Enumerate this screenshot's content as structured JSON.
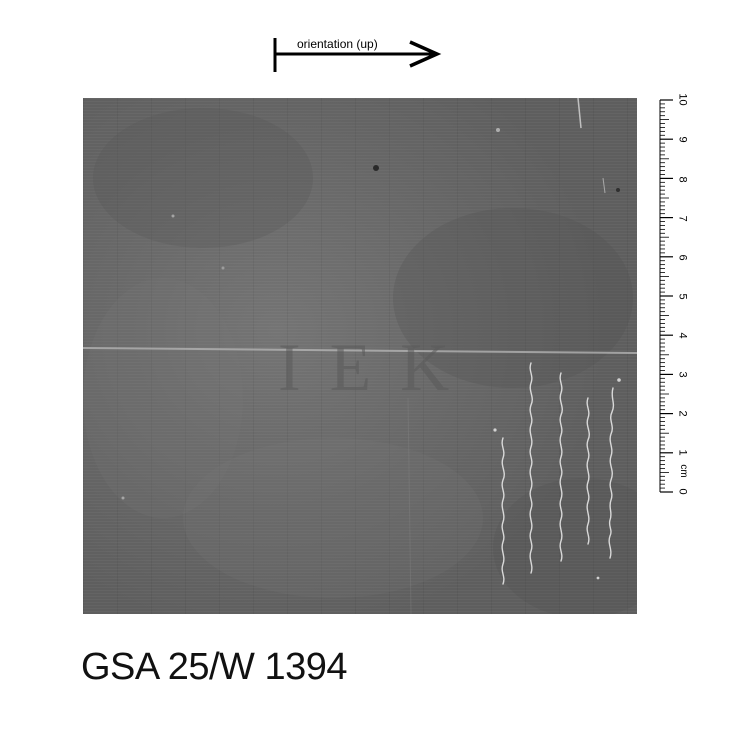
{
  "orientation": {
    "label": "orientation (up)"
  },
  "ruler": {
    "unit": "cm",
    "numbers": [
      "0",
      "1",
      "2",
      "3",
      "4",
      "5",
      "6",
      "7",
      "8",
      "9",
      "10"
    ]
  },
  "shelfmark": "GSA 25/W 1394",
  "colors": {
    "paper": "#6b6b6b",
    "ink": "#e6e6e6",
    "text": "#111111"
  }
}
